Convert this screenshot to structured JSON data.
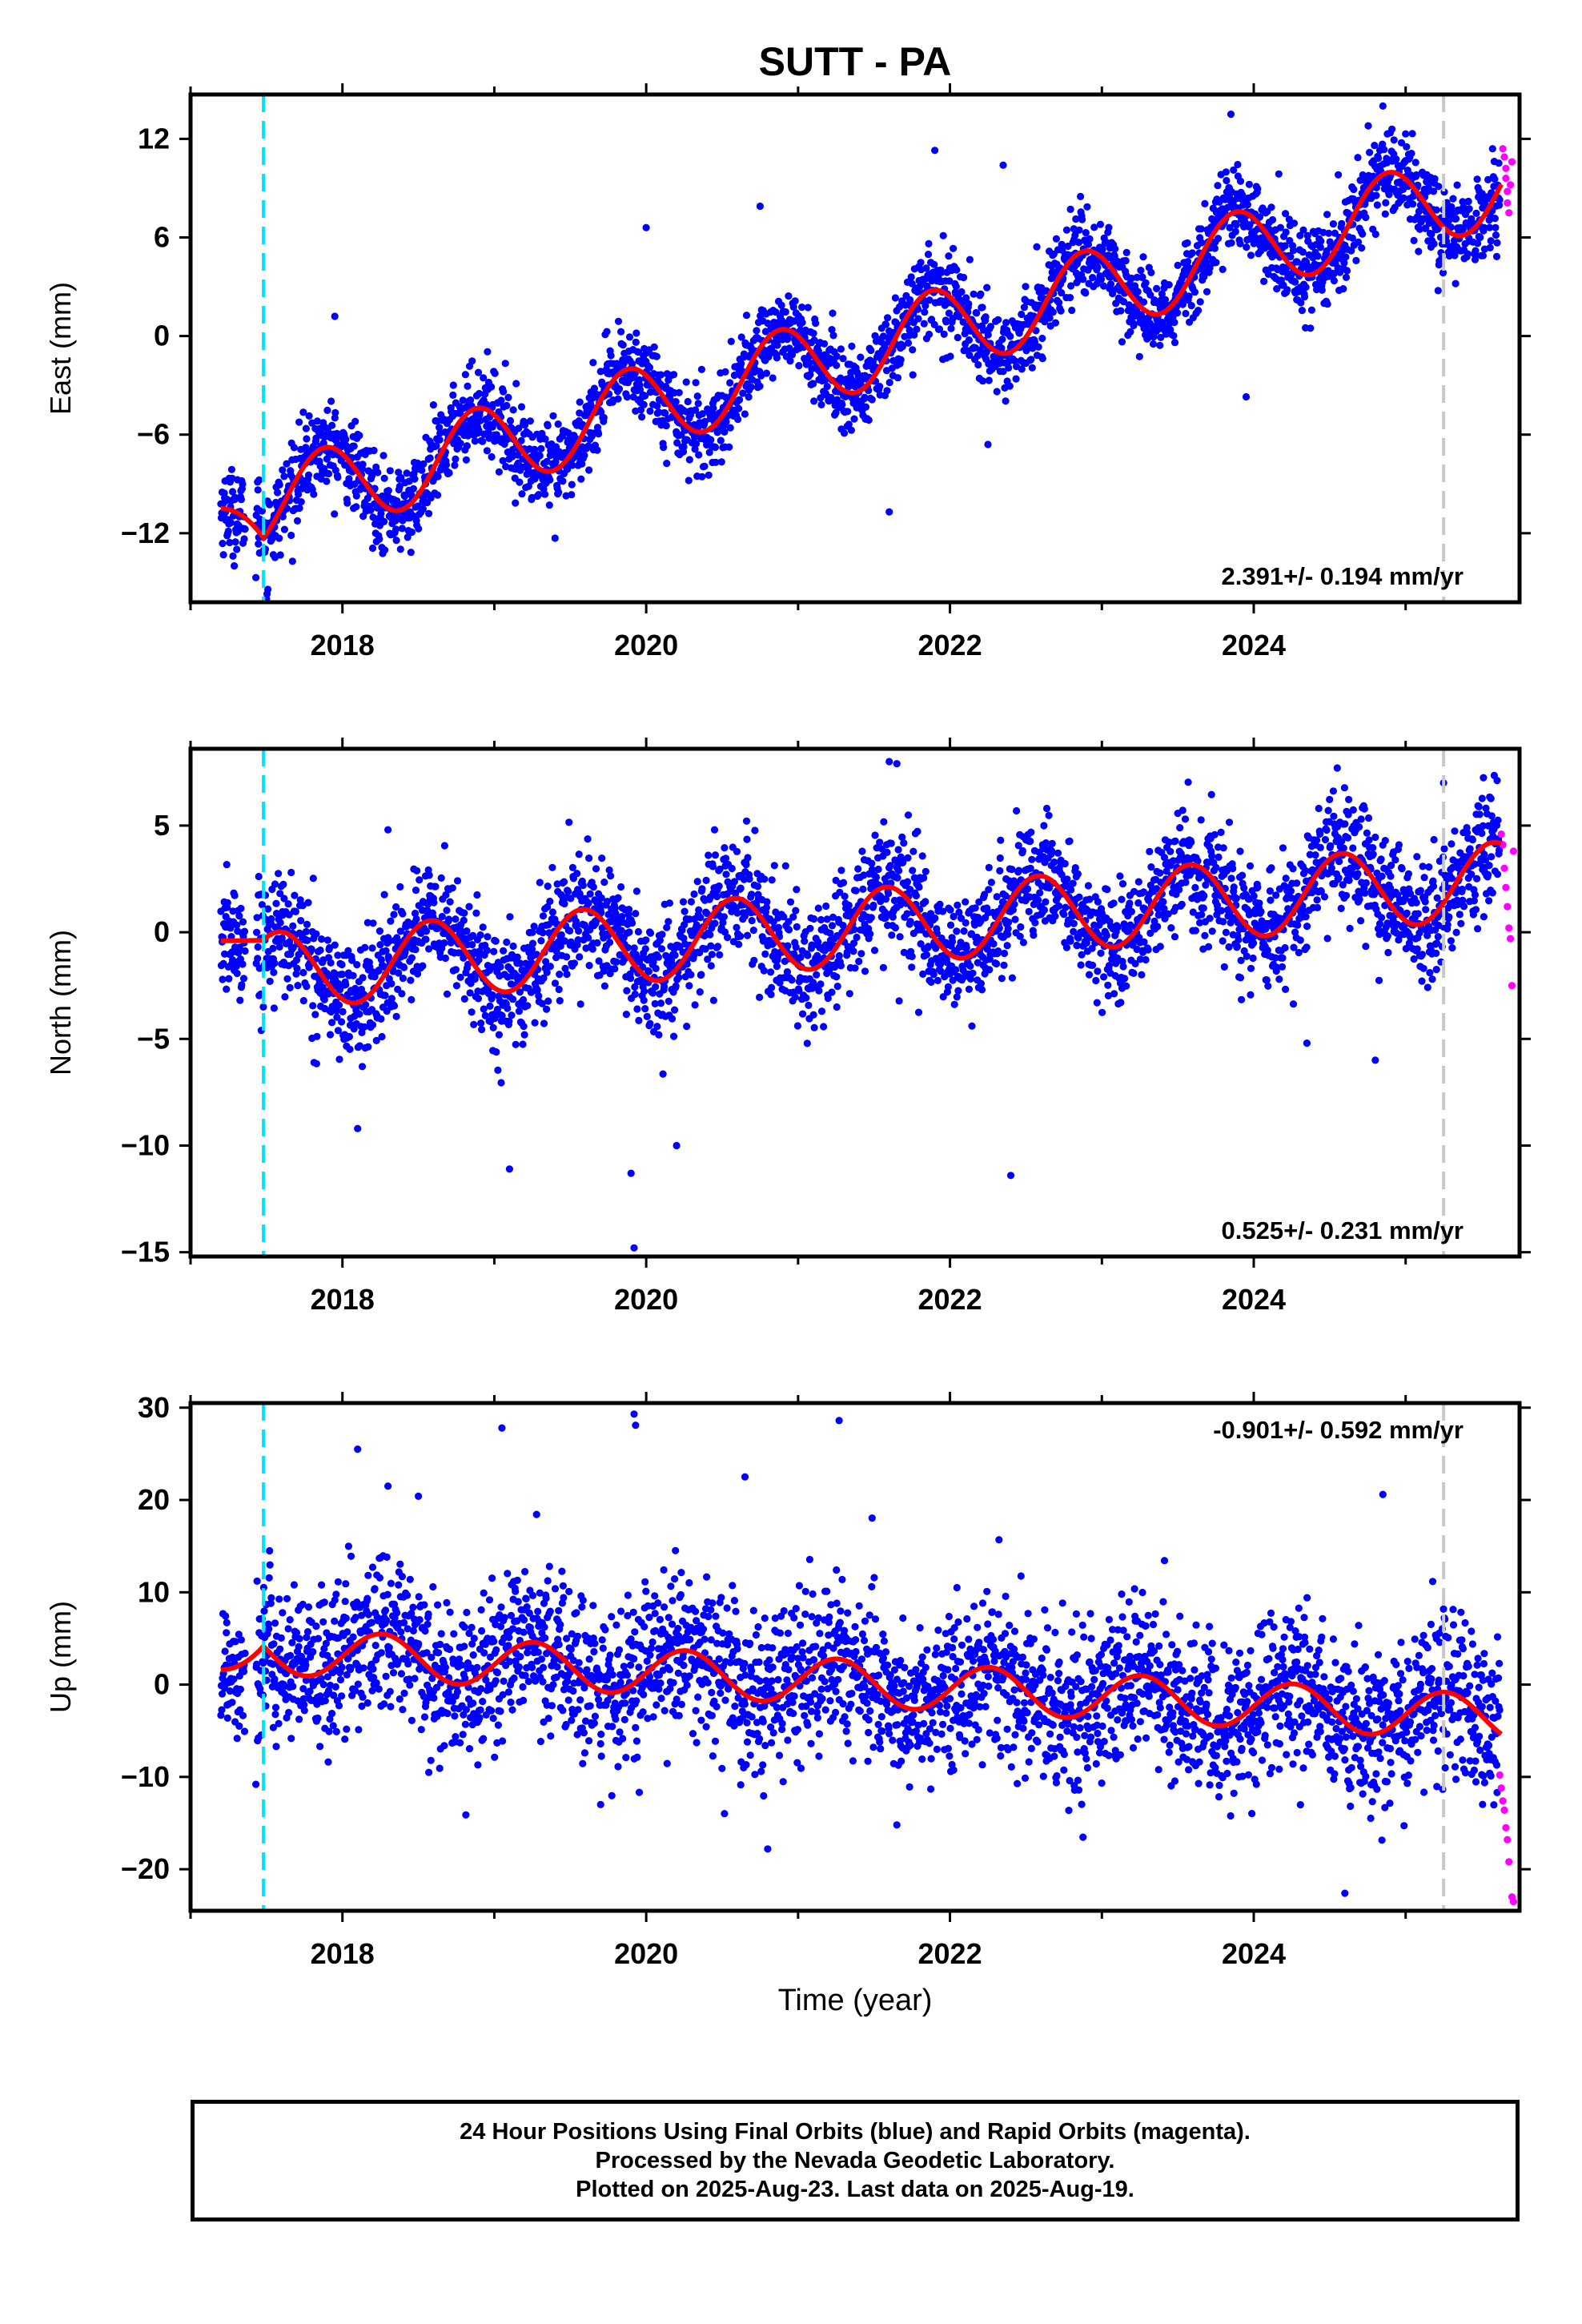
{
  "title": "SUTT - PA",
  "xlabel": "Time (year)",
  "colors": {
    "final": "#0000ff",
    "rapid": "#ff00ff",
    "fit": "#ff0000",
    "event": "#00e5ff",
    "break": "#c8c8c8"
  },
  "chart_data": [
    {
      "type": "scatter",
      "name": "east",
      "ylabel": "East (mm)",
      "xlim": [
        2017.0,
        2025.75
      ],
      "ylim": [
        -16.2,
        14.7
      ],
      "yticks": [
        -12,
        -6,
        0,
        6,
        12
      ],
      "xticks": [
        2018,
        2020,
        2022,
        2024
      ],
      "rate_label": "2.391+/- 0.194 mm/yr",
      "rate_position": "bottom-right",
      "event_line_x": 2017.48,
      "break_line_x": 2025.25,
      "trend": {
        "rate": 2.391,
        "ref_year": 2021.35,
        "ref_value": -1.0
      },
      "seasonal": {
        "amplitude": 2.5,
        "peak_phase": 0.88
      },
      "noise_sd": 1.3,
      "fit_start_value": -10.5,
      "outliers": [
        [
          2017.43,
          -14.7
        ],
        [
          2017.5,
          -16.0
        ],
        [
          2017.95,
          1.2
        ],
        [
          2019.4,
          -12.3
        ],
        [
          2020.0,
          6.6
        ],
        [
          2020.75,
          7.9
        ],
        [
          2021.6,
          -10.7
        ],
        [
          2021.9,
          11.3
        ],
        [
          2022.35,
          10.4
        ],
        [
          2022.25,
          -6.6
        ],
        [
          2023.85,
          13.5
        ],
        [
          2024.85,
          14.0
        ],
        [
          2023.95,
          -3.7
        ],
        [
          2025.0,
          12.3
        ]
      ],
      "rapid_points": [
        [
          2025.64,
          11.4
        ],
        [
          2025.65,
          10.9
        ],
        [
          2025.66,
          10.2
        ],
        [
          2025.66,
          9.6
        ],
        [
          2025.67,
          8.8
        ],
        [
          2025.67,
          8.1
        ],
        [
          2025.68,
          7.5
        ],
        [
          2025.69,
          9.2
        ],
        [
          2025.7,
          10.6
        ]
      ]
    },
    {
      "type": "scatter",
      "name": "north",
      "ylabel": "North (mm)",
      "xlim": [
        2017.0,
        2025.75
      ],
      "ylim": [
        -15.2,
        8.6
      ],
      "yticks": [
        -15,
        -10,
        -5,
        0,
        5
      ],
      "xticks": [
        2018,
        2020,
        2022,
        2024
      ],
      "rate_label": "0.525+/- 0.231 mm/yr",
      "rate_position": "bottom-right",
      "event_line_x": 2017.48,
      "break_line_x": 2025.25,
      "trend": {
        "rate": 0.525,
        "ref_year": 2021.35,
        "ref_value": 0.2
      },
      "seasonal": {
        "amplitude": 1.8,
        "peak_phase": 0.58
      },
      "noise_sd": 1.4,
      "fit_start_value": -0.4,
      "outliers": [
        [
          2019.1,
          -11.1
        ],
        [
          2019.9,
          -11.3
        ],
        [
          2019.92,
          -14.8
        ],
        [
          2020.2,
          -10.0
        ],
        [
          2021.6,
          8.0
        ],
        [
          2021.65,
          7.9
        ],
        [
          2022.4,
          -11.4
        ],
        [
          2024.55,
          7.7
        ],
        [
          2024.35,
          -5.2
        ],
        [
          2024.8,
          -6.0
        ],
        [
          2025.25,
          7.0
        ],
        [
          2018.3,
          4.8
        ],
        [
          2020.45,
          4.8
        ],
        [
          2018.1,
          -9.2
        ]
      ],
      "rapid_points": [
        [
          2025.63,
          4.6
        ],
        [
          2025.64,
          4.1
        ],
        [
          2025.65,
          3.0
        ],
        [
          2025.66,
          2.1
        ],
        [
          2025.67,
          1.2
        ],
        [
          2025.68,
          0.2
        ],
        [
          2025.69,
          -0.3
        ],
        [
          2025.7,
          -2.5
        ],
        [
          2025.71,
          3.8
        ]
      ]
    },
    {
      "type": "scatter",
      "name": "up",
      "ylabel": "Up (mm)",
      "xlim": [
        2017.0,
        2025.75
      ],
      "ylim": [
        -24.5,
        30.5
      ],
      "yticks": [
        -20,
        -10,
        0,
        10,
        20,
        30
      ],
      "xticks": [
        2018,
        2020,
        2022,
        2024
      ],
      "rate_label": "-0.901+/- 0.592 mm/yr",
      "rate_position": "top-right",
      "event_line_x": 2017.48,
      "break_line_x": 2025.25,
      "trend": {
        "rate": -0.901,
        "ref_year": 2021.35,
        "ref_value": 0.2
      },
      "seasonal": {
        "amplitude": 2.5,
        "peak_phase": 0.26
      },
      "noise_sd": 4.3,
      "fit_start_value": 1.6,
      "outliers": [
        [
          2018.1,
          25.5
        ],
        [
          2019.05,
          27.8
        ],
        [
          2019.92,
          29.3
        ],
        [
          2019.93,
          28.1
        ],
        [
          2021.27,
          28.6
        ],
        [
          2020.65,
          22.5
        ],
        [
          2018.3,
          21.5
        ],
        [
          2024.85,
          20.6
        ],
        [
          2024.6,
          -22.6
        ],
        [
          2020.8,
          -17.8
        ],
        [
          2017.43,
          -10.8
        ],
        [
          2021.65,
          -15.2
        ],
        [
          2019.7,
          -13.0
        ],
        [
          2018.5,
          20.4
        ]
      ],
      "rapid_points": [
        [
          2025.62,
          -9.8
        ],
        [
          2025.63,
          -11.2
        ],
        [
          2025.64,
          -12.6
        ],
        [
          2025.65,
          -13.6
        ],
        [
          2025.66,
          -15.5
        ],
        [
          2025.67,
          -16.8
        ],
        [
          2025.68,
          -19.2
        ],
        [
          2025.7,
          -23.0
        ],
        [
          2025.71,
          -23.5
        ]
      ]
    }
  ],
  "footer": {
    "line1": "24 Hour Positions Using Final Orbits (blue) and Rapid Orbits (magenta).",
    "line2": "Processed by the Nevada Geodetic Laboratory.",
    "line3": "Plotted on 2025-Aug-23. Last data on 2025-Aug-19."
  }
}
